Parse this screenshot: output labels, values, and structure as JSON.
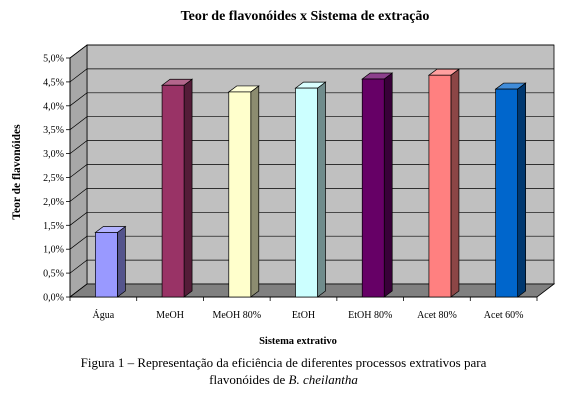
{
  "chart_data": {
    "type": "bar",
    "title": "Teor de flavonóides x Sistema de extração",
    "xlabel": "Sistema extrativo",
    "ylabel": "Teor de flavonóides",
    "categories": [
      "Água",
      "MeOH",
      "MeOH 80%",
      "EtOH",
      "EtOH 80%",
      "Acet 80%",
      "Acet 60%"
    ],
    "values": [
      1.35,
      4.43,
      4.29,
      4.37,
      4.56,
      4.64,
      4.35
    ],
    "value_unit": "%",
    "ylim": [
      0,
      5.0
    ],
    "yticks": [
      "0,0%",
      "0,5%",
      "1,0%",
      "1,5%",
      "2,0%",
      "2,5%",
      "3,0%",
      "3,5%",
      "4,0%",
      "4,5%",
      "5,0%"
    ],
    "grid": true,
    "legend": "none",
    "colors": [
      "#9999ff",
      "#993366",
      "#ffffcc",
      "#ccffff",
      "#660066",
      "#ff8080",
      "#0066cc"
    ],
    "wall_color": "#c0c0c0",
    "floor_color": "#808080"
  },
  "caption": {
    "line1": "Figura 1 – Representação da eficiência de diferentes processos extrativos para",
    "line2_prefix": "flavonóides de ",
    "line2_italic": "B. cheilantha"
  }
}
